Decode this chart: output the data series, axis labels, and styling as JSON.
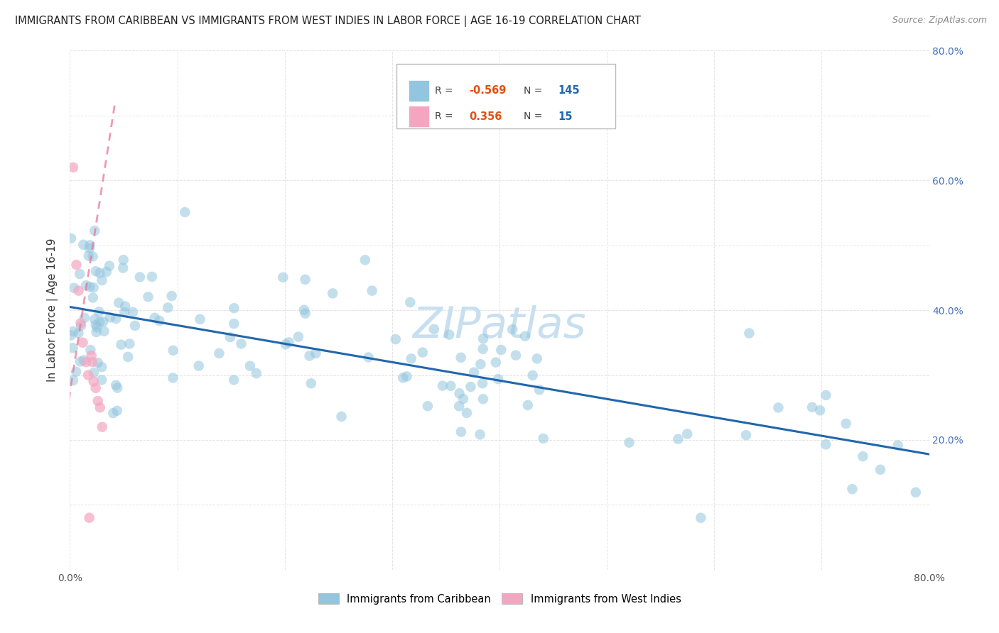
{
  "title": "IMMIGRANTS FROM CARIBBEAN VS IMMIGRANTS FROM WEST INDIES IN LABOR FORCE | AGE 16-19 CORRELATION CHART",
  "source": "Source: ZipAtlas.com",
  "ylabel": "In Labor Force | Age 16-19",
  "xlim": [
    0.0,
    0.8
  ],
  "ylim": [
    0.0,
    0.8
  ],
  "blue_color": "#92c5de",
  "pink_color": "#f4a6c0",
  "blue_line_color": "#2166ac",
  "pink_line_color": "#e8799a",
  "watermark_color": "#c8dff0",
  "background_color": "#ffffff",
  "grid_color": "#dddddd",
  "title_color": "#222222",
  "source_color": "#888888",
  "axis_label_color": "#333333",
  "right_tick_color": "#4472c4",
  "r1_val": "-0.569",
  "n1_val": "145",
  "r2_val": "0.356",
  "n2_val": "15",
  "legend1": "Immigrants from Caribbean",
  "legend2": "Immigrants from West Indies",
  "blue_trend_x0": 0.0,
  "blue_trend_x1": 0.8,
  "blue_trend_y0": 0.405,
  "blue_trend_y1": 0.178,
  "pink_trend_x0": -0.005,
  "pink_trend_x1": 0.042,
  "pink_trend_y0": 0.22,
  "pink_trend_y1": 0.72
}
